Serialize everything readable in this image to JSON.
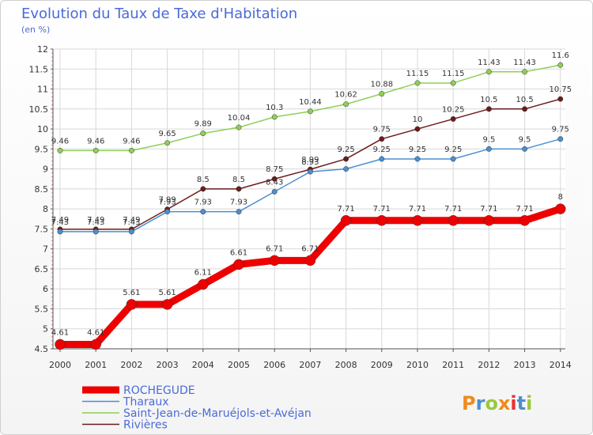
{
  "title": "Evolution du Taux de Taxe d'Habitation",
  "subtitle": "(en %)",
  "brand": {
    "text": "Proxiti"
  },
  "chart_data": {
    "type": "line",
    "x": [
      "2000",
      "2001",
      "2002",
      "2003",
      "2004",
      "2005",
      "2006",
      "2007",
      "2008",
      "2009",
      "2010",
      "2011",
      "2012",
      "2013",
      "2014"
    ],
    "ylim": [
      4.5,
      12
    ],
    "yticks": [
      "4.5",
      "5",
      "5.5",
      "6",
      "6.5",
      "7",
      "7.5",
      "8",
      "8.5",
      "9",
      "9.5",
      "10",
      "10.5",
      "11",
      "11.5",
      "12"
    ],
    "grid": true,
    "legend_position": "bottom-left",
    "series": [
      {
        "name": "Saint-Jean-de-Maruéjols-et-Avéjan",
        "color": "#8fce57",
        "width": 1.5,
        "values": [
          9.46,
          9.46,
          9.46,
          9.65,
          9.89,
          10.04,
          10.3,
          10.44,
          10.62,
          10.88,
          11.15,
          11.15,
          11.43,
          11.43,
          11.6
        ],
        "labels": [
          "9.46",
          "9.46",
          "9.46",
          "9.65",
          "9.89",
          "10.04",
          "10.3",
          "10.44",
          "10.62",
          "10.88",
          "11.15",
          "11.15",
          "11.43",
          "11.43",
          "11.6"
        ]
      },
      {
        "name": "Rivières",
        "color": "#6b1c1c",
        "width": 1.5,
        "values": [
          7.49,
          7.49,
          7.49,
          7.99,
          8.5,
          8.5,
          8.75,
          8.99,
          9.25,
          9.75,
          10,
          10.25,
          10.5,
          10.5,
          10.75
        ],
        "labels": [
          "7.49",
          "7.49",
          "7.49",
          "7.99",
          "8.5",
          "8.5",
          "8.75",
          "8.99",
          "9.25",
          "9.75",
          "10",
          "10.25",
          "10.5",
          "10.5",
          "10.75"
        ]
      },
      {
        "name": "Tharaux",
        "color": "#4b8fd0",
        "width": 1.5,
        "values": [
          7.43,
          7.43,
          7.43,
          7.93,
          7.93,
          7.93,
          8.43,
          8.93,
          9,
          9.25,
          9.25,
          9.25,
          9.5,
          9.5,
          9.75
        ],
        "labels": [
          "7.43",
          "7.43",
          "7.43",
          "7.93",
          "7.93",
          "7.93",
          "8.43",
          "8.93",
          "",
          "9.25",
          "9.25",
          "9.25",
          "9.5",
          "9.5",
          "9.75"
        ]
      },
      {
        "name": "ROCHEGUDE",
        "color": "#ee0000",
        "width": 9,
        "values": [
          4.61,
          4.61,
          5.61,
          5.61,
          6.11,
          6.61,
          6.71,
          6.71,
          7.71,
          7.71,
          7.71,
          7.71,
          7.71,
          7.71,
          8
        ],
        "labels": [
          "4.61",
          "4.61",
          "5.61",
          "5.61",
          "6.11",
          "6.61",
          "6.71",
          "6.71",
          "7.71",
          "7.71",
          "7.71",
          "7.71",
          "7.71",
          "7.71",
          "8"
        ]
      }
    ],
    "legend": [
      {
        "name": "ROCHEGUDE",
        "color": "#ee0000",
        "thick": true
      },
      {
        "name": "Tharaux",
        "color": "#4b8fd0",
        "thick": false
      },
      {
        "name": "Saint-Jean-de-Maruéjols-et-Avéjan",
        "color": "#8fce57",
        "thick": false
      },
      {
        "name": "Rivières",
        "color": "#6b1c1c",
        "thick": false
      }
    ]
  }
}
